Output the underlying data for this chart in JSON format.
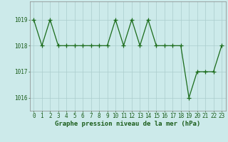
{
  "title": "Graphe pression niveau de la mer (hPa)",
  "x_values": [
    0,
    1,
    2,
    3,
    4,
    5,
    6,
    7,
    8,
    9,
    10,
    11,
    12,
    13,
    14,
    15,
    16,
    17,
    18,
    19,
    20,
    21,
    22,
    23
  ],
  "y_values": [
    1019,
    1018,
    1019,
    1018,
    1018,
    1018,
    1018,
    1018,
    1018,
    1018,
    1019,
    1018,
    1019,
    1018,
    1019,
    1018,
    1018,
    1018,
    1018,
    1016,
    1017,
    1017,
    1017,
    1018
  ],
  "y_ticks": [
    1016,
    1017,
    1018,
    1019
  ],
  "y_min": 1015.5,
  "y_max": 1019.7,
  "x_min": -0.5,
  "x_max": 23.5,
  "line_color": "#1a6b1a",
  "marker_color": "#1a6b1a",
  "bg_color": "#cceaea",
  "grid_color": "#aacccc",
  "title_color": "#1a5c1a",
  "tick_color": "#1a5c1a",
  "spine_color": "#888888",
  "title_fontsize": 6.5,
  "tick_fontsize": 5.5,
  "marker_size": 4,
  "line_width": 0.9
}
